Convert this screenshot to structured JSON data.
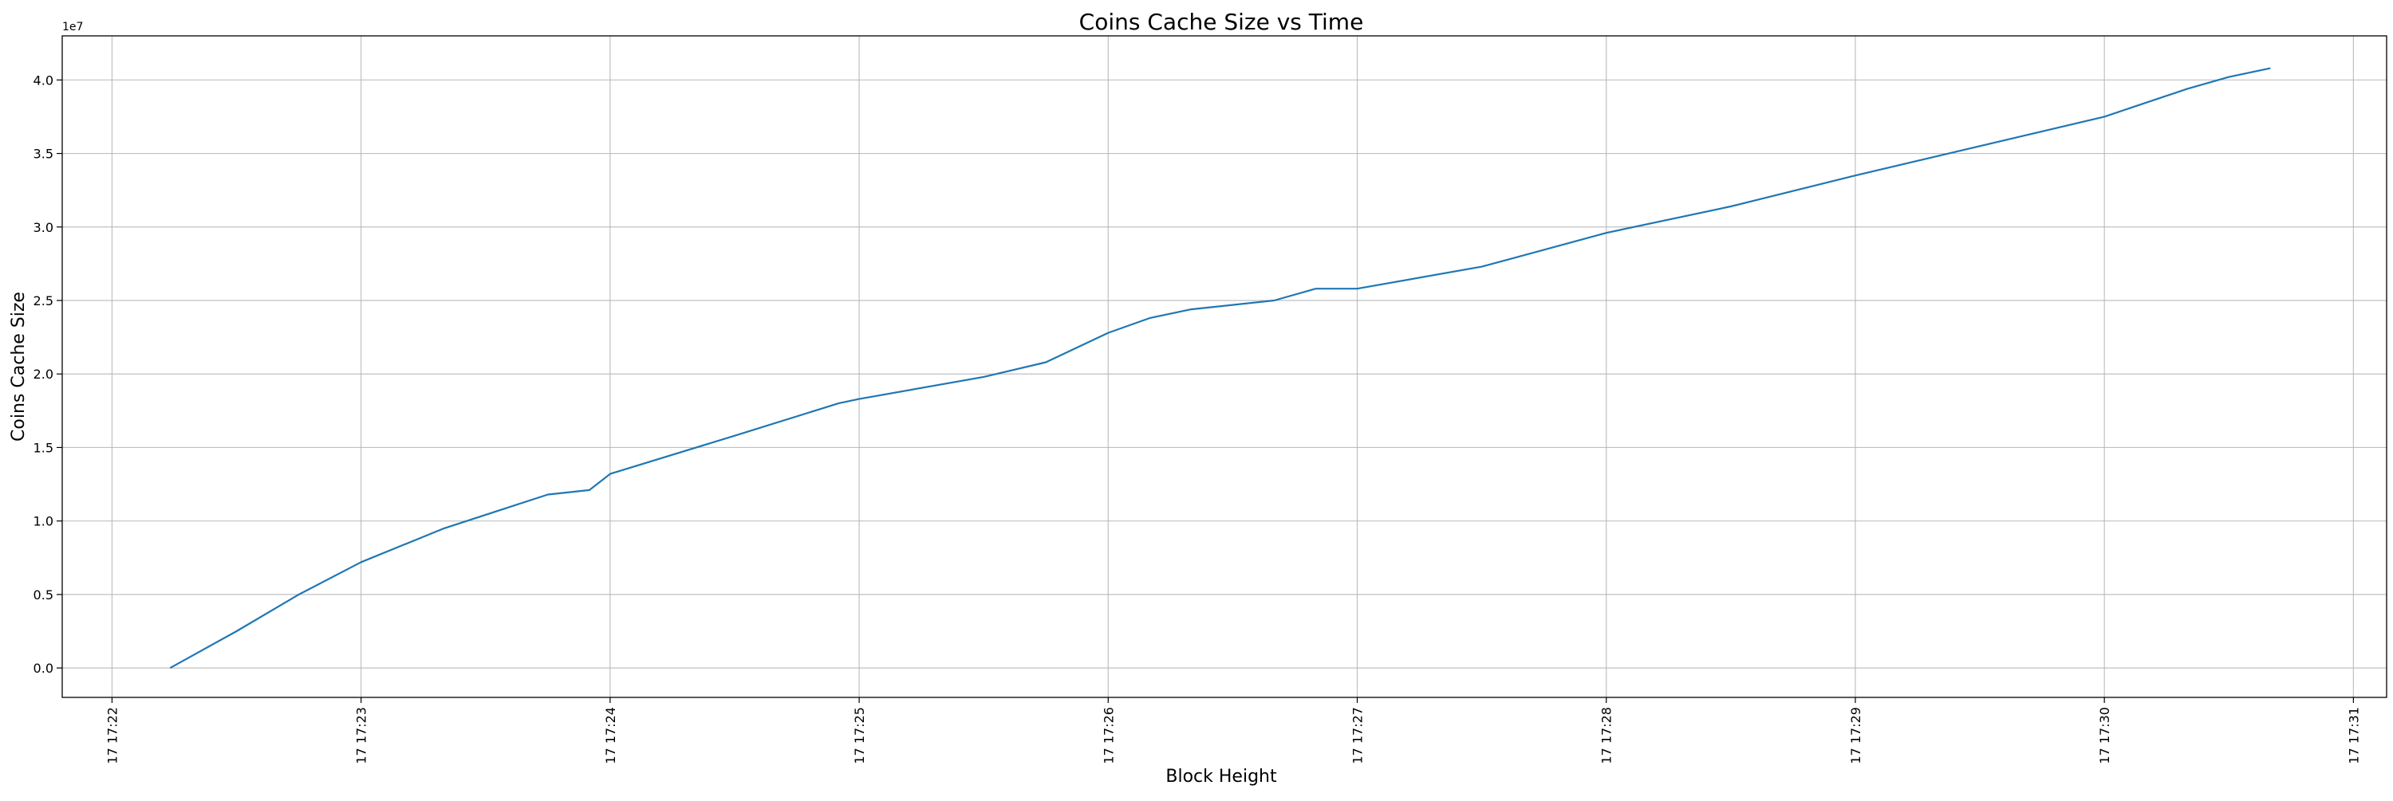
{
  "chart_data": {
    "type": "line",
    "title": "Coins Cache Size vs Time",
    "xlabel": "Block Height",
    "ylabel": "Coins Cache Size",
    "y_offset_label": "1e7",
    "y_multiplier": 10000000,
    "grid": true,
    "legend": "none",
    "line_color": "#1f77b4",
    "xlim": [
      "17:21:48",
      "17:31:08"
    ],
    "ylim": [
      -0.2,
      4.3
    ],
    "x_ticks": [
      "17:22",
      "17:23",
      "17:24",
      "17:25",
      "17:26",
      "17:27",
      "17:28",
      "17:29",
      "17:30",
      "17:31"
    ],
    "x_tick_labels": [
      "17 17:22",
      "17 17:23",
      "17 17:24",
      "17 17:25",
      "17 17:26",
      "17 17:27",
      "17 17:28",
      "17 17:29",
      "17 17:30",
      "17 17:31"
    ],
    "y_ticks": [
      0.0,
      0.5,
      1.0,
      1.5,
      2.0,
      2.5,
      3.0,
      3.5,
      4.0
    ],
    "y_tick_labels": [
      "0.0",
      "0.5",
      "1.0",
      "1.5",
      "2.0",
      "2.5",
      "3.0",
      "3.5",
      "4.0"
    ],
    "series": [
      {
        "x": [
          "17:22:14",
          "17:22:30",
          "17:22:45",
          "17:23:00",
          "17:23:20",
          "17:23:45",
          "17:23:55",
          "17:24:00",
          "17:24:30",
          "17:24:55",
          "17:25:00",
          "17:25:30",
          "17:25:45",
          "17:26:00",
          "17:26:10",
          "17:26:20",
          "17:26:40",
          "17:26:50",
          "17:27:00",
          "17:27:30",
          "17:28:00",
          "17:28:30",
          "17:29:00",
          "17:29:30",
          "17:30:00",
          "17:30:20",
          "17:30:30",
          "17:30:40"
        ],
        "y": [
          0.0,
          0.25,
          0.5,
          0.72,
          0.95,
          1.18,
          1.21,
          1.32,
          1.58,
          1.8,
          1.83,
          1.98,
          2.08,
          2.28,
          2.38,
          2.44,
          2.5,
          2.58,
          2.58,
          2.73,
          2.96,
          3.14,
          3.35,
          3.55,
          3.75,
          3.94,
          4.02,
          4.08
        ]
      }
    ]
  }
}
